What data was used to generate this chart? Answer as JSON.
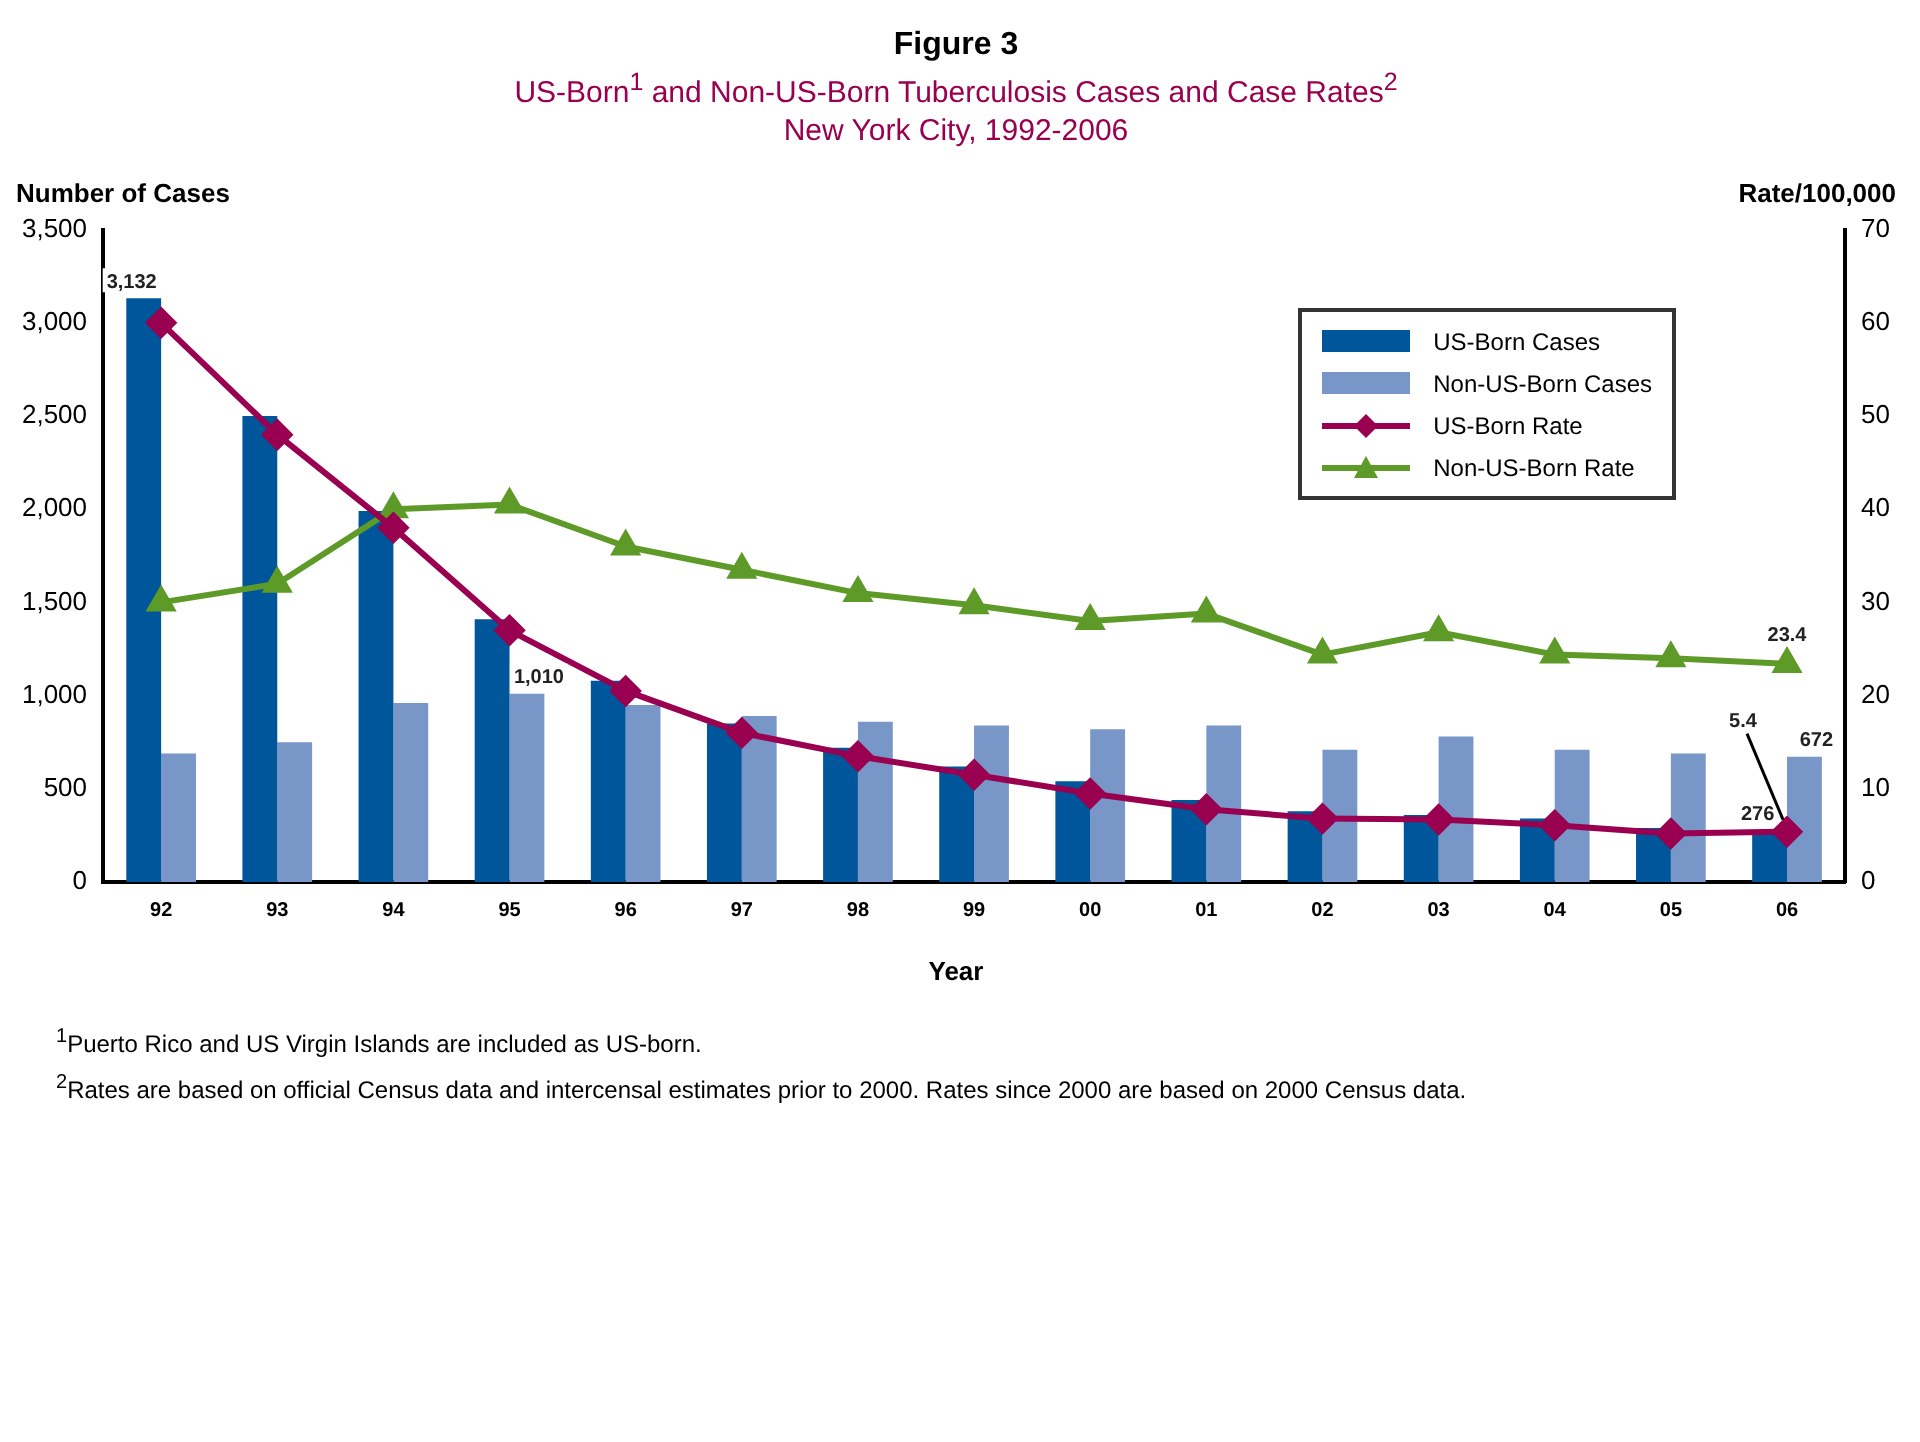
{
  "chart_data": {
    "type": "bar",
    "title": "Figure 3",
    "subtitle": "US-Born$^{1}$ and Non-US-Born Tuberculosis Cases and Case Rates$^{2}$\nNew York City, 1992-2006",
    "xlabel": "Year",
    "ylabel": "Number of Cases",
    "y2label": "Rate/100,000",
    "categories": [
      "92",
      "93",
      "94",
      "95",
      "96",
      "97",
      "98",
      "99",
      "00",
      "01",
      "02",
      "03",
      "04",
      "05",
      "06"
    ],
    "series": [
      {
        "name": "US-Born Cases",
        "color": "#00569a",
        "values": [
          3132,
          2500,
          1990,
          1410,
          1080,
          850,
          720,
          620,
          540,
          440,
          380,
          360,
          340,
          290,
          276
        ],
        "value_labels": [
          "3,132",
          null,
          null,
          null,
          null,
          null,
          null,
          null,
          null,
          null,
          null,
          null,
          null,
          null,
          "276"
        ]
      },
      {
        "name": "Non-US-Born Cases",
        "color": "#7896c8",
        "values": [
          690,
          750,
          960,
          1010,
          950,
          890,
          860,
          840,
          820,
          840,
          710,
          780,
          710,
          690,
          672
        ],
        "value_labels": [
          null,
          null,
          null,
          "1,010",
          null,
          null,
          null,
          null,
          null,
          null,
          null,
          null,
          null,
          null,
          "672"
        ]
      },
      {
        "name": "US-Born Rate",
        "type": "line",
        "axis": "y2",
        "marker": "diamond",
        "color": "#990050",
        "values": [
          60,
          48,
          38,
          27,
          20.5,
          16,
          13.5,
          11.5,
          9.5,
          7.8,
          6.8,
          6.7,
          6.1,
          5.2,
          5.4
        ],
        "value_labels": [
          null,
          null,
          null,
          null,
          null,
          null,
          null,
          null,
          null,
          null,
          null,
          null,
          null,
          null,
          "5.4"
        ]
      },
      {
        "name": "Non-US-Born Rate",
        "type": "line",
        "axis": "y2",
        "marker": "triangle",
        "color": "#5e9a28",
        "values": [
          30,
          32,
          40,
          40.5,
          36,
          33.5,
          31,
          29.7,
          28,
          28.8,
          24.4,
          26.8,
          24.4,
          24,
          23.4
        ],
        "value_labels": [
          null,
          null,
          null,
          null,
          null,
          null,
          null,
          null,
          null,
          null,
          null,
          null,
          null,
          null,
          "23.4"
        ]
      }
    ],
    "ylim": [
      0,
      3500
    ],
    "yticks": [
      0,
      {
        "value": 500,
        "label": "500"
      },
      {
        "value": 1000,
        "label": "1,000"
      },
      {
        "value": 1500,
        "label": "1,500"
      },
      {
        "value": 2000,
        "label": "2,000"
      },
      {
        "value": 2500,
        "label": "2,500"
      },
      {
        "value": 3000,
        "label": "3,000"
      },
      {
        "value": 3500,
        "label": "3,500"
      }
    ],
    "y2lim": [
      0,
      70
    ],
    "y2ticks": [
      0,
      10,
      20,
      30,
      40,
      50,
      60,
      70
    ],
    "grid": false,
    "legend": "top right",
    "annotations": [
      "$^{1}$Puerto Rico and US Virgin Islands are included as US-born.",
      "$^{2}$Rates are based on official Census data and intercensal estimates prior to 2000. Rates since 2000 are based on 2000 Census data."
    ]
  }
}
